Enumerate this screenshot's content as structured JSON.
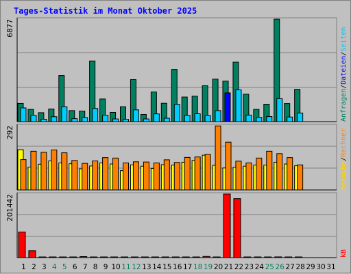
{
  "title": "Tages-Statistik im Monat Oktober 2025",
  "chart_data": [
    {
      "type": "bar",
      "panel": "top",
      "ymax_label": "6877",
      "ylim": [
        0,
        6877
      ],
      "grid": true,
      "side_labels": [
        {
          "text": "Anfragen",
          "color": "#008060"
        },
        {
          "text": "/",
          "color": "#000000"
        },
        {
          "text": "Dateien",
          "color": "#0000FF"
        },
        {
          "text": "/",
          "color": "#000000"
        },
        {
          "text": "Seiten",
          "color": "#00BFFF"
        }
      ],
      "categories": [
        "1",
        "2",
        "3",
        "4",
        "5",
        "6",
        "7",
        "8",
        "9",
        "10",
        "11",
        "12",
        "13",
        "14",
        "15",
        "16",
        "17",
        "18",
        "19",
        "20",
        "21",
        "22",
        "23",
        "24",
        "25",
        "26",
        "27",
        "28",
        "29",
        "30",
        "31"
      ],
      "series": [
        {
          "name": "Anfragen",
          "color": "#008060",
          "values": [
            1220,
            820,
            600,
            850,
            3090,
            740,
            710,
            4070,
            1520,
            620,
            1000,
            2820,
            480,
            1990,
            1230,
            3500,
            1650,
            1710,
            2410,
            2850,
            2720,
            3990,
            1840,
            820,
            1170,
            6877,
            1210,
            2170,
            0,
            0,
            0
          ]
        },
        {
          "name": "Dateien",
          "color": "#0000FF",
          "values": [
            0,
            0,
            0,
            0,
            0,
            0,
            0,
            0,
            0,
            0,
            0,
            0,
            0,
            0,
            0,
            0,
            0,
            0,
            0,
            0,
            1930,
            0,
            0,
            0,
            0,
            0,
            0,
            0,
            0,
            0,
            0
          ]
        },
        {
          "name": "Seiten",
          "color": "#00CCFF",
          "values": [
            920,
            420,
            160,
            330,
            1000,
            200,
            270,
            880,
            430,
            180,
            150,
            790,
            180,
            520,
            230,
            1160,
            420,
            530,
            410,
            740,
            0,
            2130,
            440,
            290,
            340,
            1540,
            310,
            580,
            0,
            0,
            0
          ]
        }
      ]
    },
    {
      "type": "bar",
      "panel": "middle",
      "ymax_label": "292",
      "ylim": [
        0,
        292
      ],
      "grid": true,
      "side_labels": [
        {
          "text": "Besuche",
          "color": "#FFD700"
        },
        {
          "text": "/",
          "color": "#000000"
        },
        {
          "text": "Rechner",
          "color": "#FF8000"
        }
      ],
      "categories": [
        "1",
        "2",
        "3",
        "4",
        "5",
        "6",
        "7",
        "8",
        "9",
        "10",
        "11",
        "12",
        "13",
        "14",
        "15",
        "16",
        "17",
        "18",
        "19",
        "20",
        "21",
        "22",
        "23",
        "24",
        "25",
        "26",
        "27",
        "28",
        "29",
        "30",
        "31"
      ],
      "series": [
        {
          "name": "Besuche",
          "color": "#FFFF00",
          "values": [
            183,
            104,
            117,
            132,
            123,
            119,
            96,
            109,
            123,
            118,
            88,
            114,
            108,
            98,
            115,
            113,
            126,
            134,
            158,
            112,
            100,
            103,
            108,
            113,
            113,
            126,
            118,
            110,
            0,
            0,
            0
          ]
        },
        {
          "name": "Rechner",
          "color": "#FF8000",
          "values": [
            138,
            176,
            171,
            182,
            169,
            134,
            121,
            132,
            147,
            145,
            123,
            128,
            127,
            123,
            137,
            125,
            148,
            150,
            162,
            291,
            217,
            131,
            123,
            145,
            176,
            165,
            147,
            114,
            0,
            0,
            0
          ]
        }
      ]
    },
    {
      "type": "bar",
      "panel": "bottom",
      "ymax_label": "201442",
      "ylim": [
        0,
        201442
      ],
      "grid": true,
      "side_labels": [
        {
          "text": "kB",
          "color": "#FF0000"
        }
      ],
      "categories": [
        "1",
        "2",
        "3",
        "4",
        "5",
        "6",
        "7",
        "8",
        "9",
        "10",
        "11",
        "12",
        "13",
        "14",
        "15",
        "16",
        "17",
        "18",
        "19",
        "20",
        "21",
        "22",
        "23",
        "24",
        "25",
        "26",
        "27",
        "28",
        "29",
        "30",
        "31"
      ],
      "series": [
        {
          "name": "kB",
          "color": "#FF0000",
          "values": [
            81000,
            22000,
            1800,
            1600,
            2000,
            1600,
            3300,
            1700,
            1900,
            1500,
            1300,
            1700,
            1300,
            1500,
            1300,
            1800,
            1400,
            1500,
            3700,
            2000,
            201442,
            187000,
            1900,
            1400,
            1600,
            2300,
            1700,
            1400,
            0,
            0,
            0
          ]
        }
      ]
    }
  ],
  "weekend_days": [
    "4",
    "5",
    "11",
    "12",
    "18",
    "19",
    "25",
    "26"
  ],
  "colors": {
    "background": "#C0C0C0",
    "title": "#0000FF",
    "weekday_tick": "#000000",
    "weekend_tick": "#008060",
    "grid": "#808080"
  }
}
